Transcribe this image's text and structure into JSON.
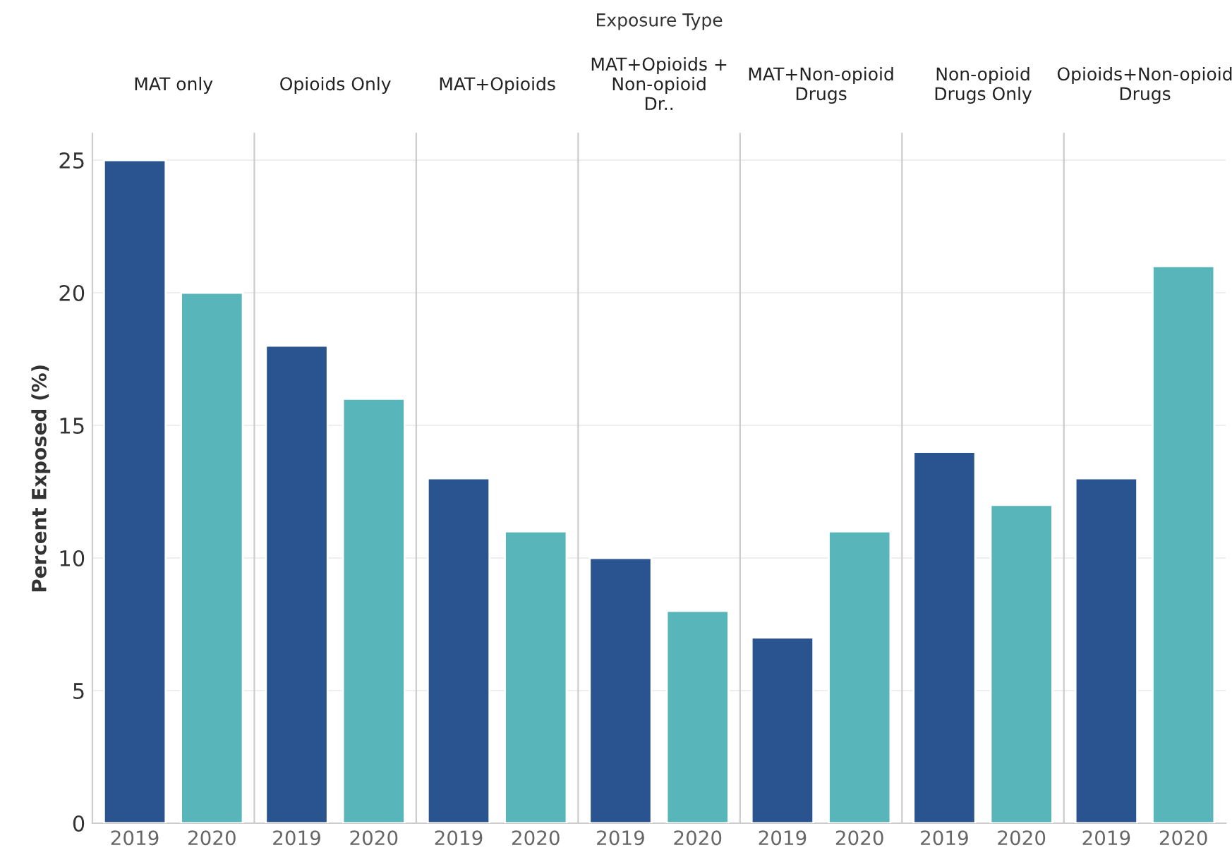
{
  "chart_data": [
    {
      "type": "bar",
      "title": "MAT only",
      "categories": [
        "2019",
        "2020"
      ],
      "values": [
        25,
        20
      ],
      "colors": [
        "#2a5490",
        "#58b5b9"
      ],
      "ylim": [
        0,
        26
      ],
      "yticks": [
        0,
        5,
        10,
        15,
        20,
        25
      ],
      "ylabel": "Percent Exposed (%)",
      "grid": "y",
      "annotations": [
        "Exposure Type"
      ]
    },
    {
      "type": "bar",
      "title": "Opioids Only",
      "categories": [
        "2019",
        "2020"
      ],
      "values": [
        18,
        16
      ],
      "colors": [
        "#2a5490",
        "#58b5b9"
      ],
      "ylim": [
        0,
        26
      ],
      "grid": "y",
      "tick_labels": "x"
    },
    {
      "type": "bar",
      "title": "MAT+Opioids",
      "categories": [
        "2019",
        "2020"
      ],
      "values": [
        13,
        11
      ],
      "colors": [
        "#2a5490",
        "#58b5b9"
      ],
      "ylim": [
        0,
        26
      ],
      "grid": "y",
      "tick_labels": "x"
    },
    {
      "type": "bar",
      "title": "MAT+Opioids + Non-opioid Dr..",
      "categories": [
        "2019",
        "2020"
      ],
      "values": [
        10,
        8
      ],
      "colors": [
        "#2a5490",
        "#58b5b9"
      ],
      "ylim": [
        0,
        26
      ],
      "grid": "y",
      "tick_labels": "x"
    },
    {
      "type": "bar",
      "title": "MAT+Non-opioid Drugs",
      "categories": [
        "2019",
        "2020"
      ],
      "values": [
        7,
        11
      ],
      "colors": [
        "#2a5490",
        "#58b5b9"
      ],
      "ylim": [
        0,
        26
      ],
      "grid": "y",
      "tick_labels": "x"
    },
    {
      "type": "bar",
      "title": "Non-opioid Drugs Only",
      "categories": [
        "2019",
        "2020"
      ],
      "values": [
        14,
        12
      ],
      "colors": [
        "#2a5490",
        "#58b5b9"
      ],
      "ylim": [
        0,
        26
      ],
      "grid": "y",
      "tick_labels": "x"
    },
    {
      "type": "bar",
      "title": "Opioids+Non-opioid Drugs",
      "categories": [
        "2019",
        "2020"
      ],
      "values": [
        13,
        21
      ],
      "colors": [
        "#2a5490",
        "#58b5b9"
      ],
      "ylim": [
        0,
        26
      ],
      "grid": "y",
      "tick_labels": "x"
    }
  ]
}
